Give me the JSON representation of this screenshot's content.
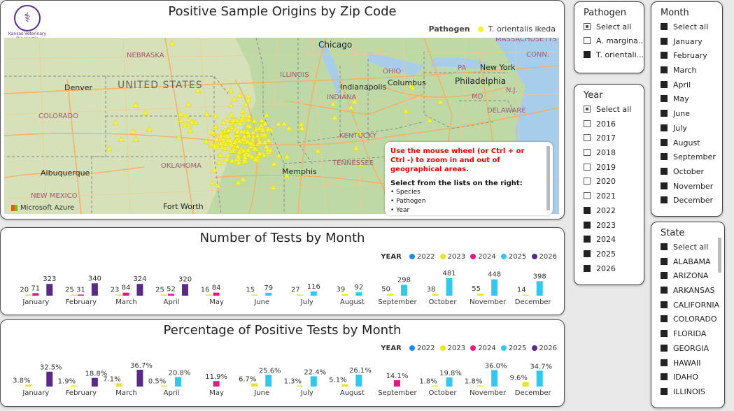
{
  "map_card": {
    "title": "Positive Sample Origins by Zip Code",
    "logo_text": "Kansas Veterinary Diagnostic Laboratory",
    "legend_title": "Pathogen",
    "legend_item": "T. orientalis ikeda",
    "point_color": "#f5f23a",
    "attribution": "Microsoft Azure",
    "labels": {
      "nebraska": "NEBRASKA",
      "united_states": "UNITED STATES",
      "colorado": "COLORADO",
      "oklahoma": "OKLAHOMA",
      "new_mexico": "NEW MEXICO",
      "illinois": "ILLINOIS",
      "indiana": "INDIANA",
      "ohio": "OHIO",
      "kentucky": "KENTUCKY",
      "tennessee": "TENNESSEE",
      "pa": "PA",
      "md": "MD",
      "delaware": "DELAWARE",
      "nj": "N.J.",
      "conn": "CONN.",
      "massachusetts": "MASSACHUSETTS",
      "chicago": "Chicago",
      "denver": "Denver",
      "indianapolis": "Indianapolis",
      "columbus": "Columbus",
      "new_york": "New York",
      "philadelphia": "Philadelphia",
      "memphis": "Memphis",
      "albuquerque": "Albuquerque",
      "fort_worth": "Fort Worth"
    },
    "info": {
      "instruction": "Use the mouse wheel (or Ctrl + or Ctrl -) to zoom in and out of geographical areas.",
      "select_heading": "Select from the lists on the right:",
      "items": [
        "Species",
        "Pathogen",
        "Year"
      ]
    }
  },
  "series_meta": {
    "legend_title": "YEAR",
    "years": [
      "2022",
      "2023",
      "2024",
      "2025",
      "2026"
    ],
    "colors": [
      "#1a8cf0",
      "#e6e621",
      "#e8168b",
      "#30c8ec",
      "#5b2a86"
    ]
  },
  "chart_data": [
    {
      "type": "bar",
      "title": "Number of Tests by Month",
      "categories": [
        "January",
        "February",
        "March",
        "April",
        "May",
        "June",
        "July",
        "August",
        "September",
        "October",
        "November",
        "December"
      ],
      "series": [
        {
          "name": "2022",
          "values": [
            null,
            null,
            null,
            null,
            null,
            null,
            null,
            null,
            null,
            null,
            null,
            null
          ]
        },
        {
          "name": "2023",
          "values": [
            20,
            25,
            23,
            25,
            16,
            15,
            27,
            39,
            50,
            38,
            55,
            14
          ]
        },
        {
          "name": "2024",
          "values": [
            71,
            31,
            84,
            52,
            84,
            null,
            null,
            null,
            null,
            null,
            null,
            null
          ]
        },
        {
          "name": "2025",
          "values": [
            null,
            null,
            null,
            null,
            null,
            79,
            116,
            92,
            298,
            481,
            448,
            398
          ]
        },
        {
          "name": "2026",
          "values": [
            323,
            340,
            324,
            320,
            null,
            null,
            null,
            null,
            null,
            null,
            null,
            null
          ]
        }
      ],
      "labels": [
        [
          "20",
          "71",
          "323"
        ],
        [
          "25",
          "31",
          "340"
        ],
        [
          "23",
          "84",
          "324"
        ],
        [
          "25",
          "52",
          "320"
        ],
        [
          "16",
          "84"
        ],
        [
          "15",
          "79"
        ],
        [
          "27",
          "116"
        ],
        [
          "39",
          "92"
        ],
        [
          "50",
          "298"
        ],
        [
          "38",
          "481"
        ],
        [
          "55",
          "448"
        ],
        [
          "14",
          "398"
        ]
      ]
    },
    {
      "type": "bar",
      "title": "Percentage of Positive Tests by Month",
      "categories": [
        "January",
        "February",
        "March",
        "April",
        "May",
        "June",
        "July",
        "August",
        "September",
        "October",
        "November",
        "December"
      ],
      "series": [
        {
          "name": "2022",
          "values": [
            null,
            null,
            null,
            null,
            null,
            null,
            null,
            null,
            null,
            null,
            null,
            null
          ]
        },
        {
          "name": "2023",
          "values": [
            3.8,
            1.9,
            7.1,
            0.5,
            null,
            6.7,
            1.3,
            5.1,
            null,
            1.8,
            1.8,
            9.6
          ]
        },
        {
          "name": "2024",
          "values": [
            null,
            null,
            null,
            null,
            11.9,
            null,
            null,
            null,
            14.1,
            null,
            null,
            null
          ]
        },
        {
          "name": "2025",
          "values": [
            null,
            null,
            null,
            20.8,
            null,
            25.6,
            22.4,
            26.1,
            null,
            19.8,
            36.0,
            34.7
          ]
        },
        {
          "name": "2026",
          "values": [
            32.5,
            18.8,
            36.7,
            null,
            null,
            null,
            null,
            null,
            null,
            null,
            null,
            null
          ]
        }
      ],
      "labels": [
        [
          "3.8%",
          "32.5%"
        ],
        [
          "1.9%",
          "18.8%"
        ],
        [
          "7.1%",
          "36.7%"
        ],
        [
          "0.5%",
          "20.8%"
        ],
        [
          "11.9%"
        ],
        [
          "6.7%",
          "25.6%"
        ],
        [
          "1.3%",
          "22.4%"
        ],
        [
          "5.1%",
          "26.1%"
        ],
        [
          "14.1%"
        ],
        [
          "1.8%",
          "19.8%"
        ],
        [
          "1.8%",
          "36.0%"
        ],
        [
          "9.6%",
          "34.7%"
        ]
      ]
    }
  ],
  "slicers": {
    "pathogen": {
      "title": "Pathogen",
      "items": [
        {
          "label": "Select all",
          "state": "partial"
        },
        {
          "label": "A. margina...",
          "state": "off"
        },
        {
          "label": "T. orientali...",
          "state": "on"
        }
      ]
    },
    "year": {
      "title": "Year",
      "items": [
        {
          "label": "Select all",
          "state": "partial"
        },
        {
          "label": "2016",
          "state": "off"
        },
        {
          "label": "2017",
          "state": "off"
        },
        {
          "label": "2018",
          "state": "off"
        },
        {
          "label": "2019",
          "state": "off"
        },
        {
          "label": "2020",
          "state": "off"
        },
        {
          "label": "2021",
          "state": "off"
        },
        {
          "label": "2022",
          "state": "on"
        },
        {
          "label": "2023",
          "state": "on"
        },
        {
          "label": "2024",
          "state": "on"
        },
        {
          "label": "2025",
          "state": "on"
        },
        {
          "label": "2026",
          "state": "on"
        }
      ]
    },
    "month": {
      "title": "Month",
      "items": [
        {
          "label": "Select all",
          "state": "on"
        },
        {
          "label": "January",
          "state": "on"
        },
        {
          "label": "February",
          "state": "on"
        },
        {
          "label": "March",
          "state": "on"
        },
        {
          "label": "April",
          "state": "on"
        },
        {
          "label": "May",
          "state": "on"
        },
        {
          "label": "June",
          "state": "on"
        },
        {
          "label": "July",
          "state": "on"
        },
        {
          "label": "August",
          "state": "on"
        },
        {
          "label": "September",
          "state": "on"
        },
        {
          "label": "October",
          "state": "on"
        },
        {
          "label": "November",
          "state": "on"
        },
        {
          "label": "December",
          "state": "on"
        }
      ]
    },
    "state": {
      "title": "State",
      "items": [
        {
          "label": "Select all",
          "state": "on"
        },
        {
          "label": "ALABAMA",
          "state": "on"
        },
        {
          "label": "ARIZONA",
          "state": "on"
        },
        {
          "label": "ARKANSAS",
          "state": "on"
        },
        {
          "label": "CALIFORNIA",
          "state": "on"
        },
        {
          "label": "COLORADO",
          "state": "on"
        },
        {
          "label": "FLORIDA",
          "state": "on"
        },
        {
          "label": "GEORGIA",
          "state": "on"
        },
        {
          "label": "HAWAII",
          "state": "on"
        },
        {
          "label": "IDAHO",
          "state": "on"
        },
        {
          "label": "ILLINOIS",
          "state": "on"
        }
      ]
    }
  }
}
